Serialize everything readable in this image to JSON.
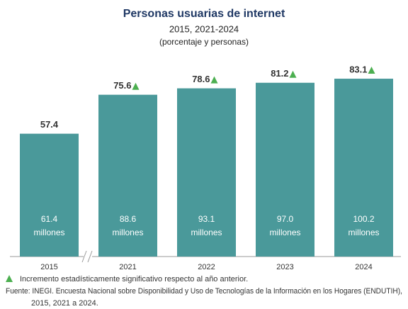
{
  "chart_data": {
    "type": "bar",
    "title": "Personas usuarias de internet",
    "subtitle": "2015, 2021-2024",
    "unit_note": "(porcentaje y personas)",
    "categories": [
      "2015",
      "2021",
      "2022",
      "2023",
      "2024"
    ],
    "values": [
      57.4,
      75.6,
      78.6,
      81.2,
      83.1
    ],
    "color": "#4a999a",
    "people": [
      61.4,
      88.6,
      93.1,
      97.0,
      100.2
    ],
    "people_labels": [
      "61.4",
      "88.6",
      "93.1",
      "97.0",
      "100.2"
    ],
    "people_unit": "millones",
    "significant": [
      false,
      true,
      true,
      true,
      true
    ],
    "significant_color": "#4caf50",
    "significant_note": "Incremento estadísticamente significativo respecto al año anterior.",
    "source": [
      "Fuente: INEGI. Encuesta Nacional sobre Disponibilidad y Uso de Tecnologías de la Información en los Hogares (ENDUTIH),",
      "2015, 2021 a 2024."
    ]
  }
}
